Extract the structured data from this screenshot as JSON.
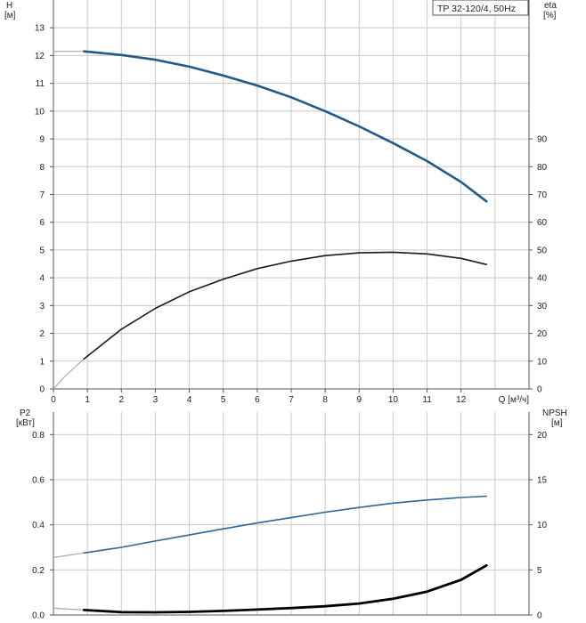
{
  "legend_label": "TP 32-120/4, 50Hz",
  "colors": {
    "grid": "#c8c8c8",
    "axis": "#555555",
    "head_curve": "#1f5a8a",
    "efficiency_curve": "#1a1a1a",
    "power_curve": "#2e6496",
    "npsh_curve": "#000000",
    "extrapolated": "#a9a9a9"
  },
  "chart_data": [
    {
      "type": "line",
      "x_axis": {
        "label": "Q [м³/ч]",
        "range": [
          0,
          14
        ],
        "ticks": [
          0,
          1,
          2,
          3,
          4,
          5,
          6,
          7,
          8,
          9,
          10,
          11,
          12
        ]
      },
      "y_axis_left": {
        "label": [
          "H",
          "[м]"
        ],
        "range": [
          0,
          14
        ],
        "ticks": [
          0,
          1,
          2,
          3,
          4,
          5,
          6,
          7,
          8,
          9,
          10,
          11,
          12,
          13
        ]
      },
      "y_axis_right": {
        "label": [
          "eta",
          "[%]"
        ],
        "range": [
          0,
          140
        ],
        "ticks": [
          0,
          10,
          20,
          30,
          40,
          50,
          60,
          70,
          80,
          90
        ]
      },
      "grid": true,
      "series": [
        {
          "axis": "left",
          "color_key": "head_curve",
          "extrapolated": [
            [
              0,
              12.15
            ],
            [
              0.9,
              12.15
            ]
          ],
          "points": [
            [
              0.9,
              12.15
            ],
            [
              2,
              12.02
            ],
            [
              3,
              11.85
            ],
            [
              4,
              11.6
            ],
            [
              5,
              11.28
            ],
            [
              6,
              10.92
            ],
            [
              7,
              10.5
            ],
            [
              8,
              10.0
            ],
            [
              9,
              9.45
            ],
            [
              10,
              8.85
            ],
            [
              11,
              8.2
            ],
            [
              12,
              7.45
            ],
            [
              12.75,
              6.75
            ]
          ]
        },
        {
          "axis": "right",
          "color_key": "efficiency_curve",
          "extrapolated": [
            [
              0,
              0
            ],
            [
              0.3,
              4
            ],
            [
              0.6,
              7.5
            ],
            [
              0.9,
              10.8
            ]
          ],
          "points": [
            [
              0.9,
              10.8
            ],
            [
              2,
              21.5
            ],
            [
              3,
              29
            ],
            [
              4,
              35
            ],
            [
              5,
              39.5
            ],
            [
              6,
              43.3
            ],
            [
              7,
              46
            ],
            [
              8,
              48
            ],
            [
              9,
              49
            ],
            [
              10,
              49.2
            ],
            [
              11,
              48.6
            ],
            [
              12,
              47
            ],
            [
              12.75,
              44.8
            ]
          ]
        }
      ]
    },
    {
      "type": "line",
      "x_axis": {
        "range": [
          0,
          14
        ]
      },
      "y_axis_left": {
        "label": [
          "P2",
          "[кВт]"
        ],
        "range": [
          0,
          0.9
        ],
        "ticks": [
          0.0,
          0.2,
          0.4,
          0.6,
          0.8
        ],
        "tick_labels": [
          "0.0",
          "0.2",
          "0.4",
          "0.6",
          "0.8"
        ]
      },
      "y_axis_right": {
        "label": [
          "NPSH",
          "[м]"
        ],
        "range": [
          0,
          22.5
        ],
        "ticks": [
          0,
          5,
          10,
          15,
          20
        ]
      },
      "grid": true,
      "series": [
        {
          "axis": "left",
          "color_key": "power_curve",
          "extrapolated": [
            [
              0,
              0.255
            ],
            [
              0.9,
              0.275
            ]
          ],
          "points": [
            [
              0.9,
              0.275
            ],
            [
              2,
              0.3
            ],
            [
              3,
              0.328
            ],
            [
              4,
              0.355
            ],
            [
              5,
              0.382
            ],
            [
              6,
              0.408
            ],
            [
              7,
              0.432
            ],
            [
              8,
              0.456
            ],
            [
              9,
              0.477
            ],
            [
              10,
              0.496
            ],
            [
              11,
              0.51
            ],
            [
              12,
              0.521
            ],
            [
              12.75,
              0.527
            ]
          ]
        },
        {
          "axis": "right",
          "color_key": "npsh_curve",
          "extrapolated": [
            [
              0,
              0.75
            ],
            [
              0.9,
              0.55
            ]
          ],
          "points": [
            [
              0.9,
              0.55
            ],
            [
              2,
              0.32
            ],
            [
              3,
              0.3
            ],
            [
              4,
              0.35
            ],
            [
              5,
              0.45
            ],
            [
              6,
              0.6
            ],
            [
              7,
              0.77
            ],
            [
              8,
              0.97
            ],
            [
              9,
              1.27
            ],
            [
              10,
              1.8
            ],
            [
              11,
              2.6
            ],
            [
              12,
              3.9
            ],
            [
              12.75,
              5.5
            ]
          ]
        }
      ]
    }
  ]
}
